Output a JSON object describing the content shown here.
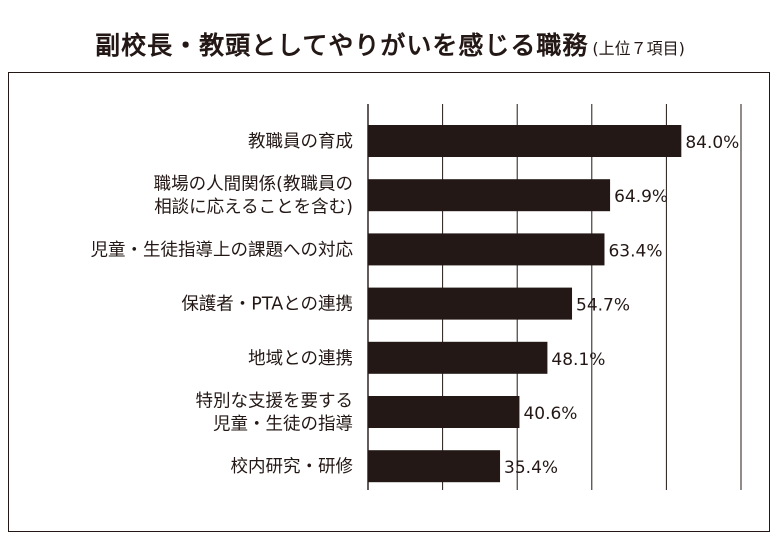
{
  "title": "副校長・教頭としてやりがいを感じる職務",
  "subtitle": "(上位７項目)",
  "colors": {
    "bar": "#231815",
    "grid": "#231815",
    "text": "#231815"
  },
  "chart_data": {
    "type": "bar",
    "orientation": "horizontal",
    "title": "副校長・教頭としてやりがいを感じる職務",
    "subtitle": "(上位７項目)",
    "xlim": [
      0,
      100
    ],
    "grid": true,
    "categories": [
      [
        "教職員の育成"
      ],
      [
        "職場の人間関係(教職員の",
        "相談に応えることを含む)"
      ],
      [
        "児童・生徒指導上の課題への対応"
      ],
      [
        "保護者・PTAとの連携"
      ],
      [
        "地域との連携"
      ],
      [
        "特別な支援を要する",
        "児童・生徒の指導"
      ],
      [
        "校内研究・研修"
      ]
    ],
    "values": [
      84.0,
      64.9,
      63.4,
      54.7,
      48.1,
      40.6,
      35.4
    ],
    "value_labels": [
      "84.0%",
      "64.9%",
      "63.4%",
      "54.7%",
      "48.1%",
      "40.6%",
      "35.4%"
    ]
  }
}
